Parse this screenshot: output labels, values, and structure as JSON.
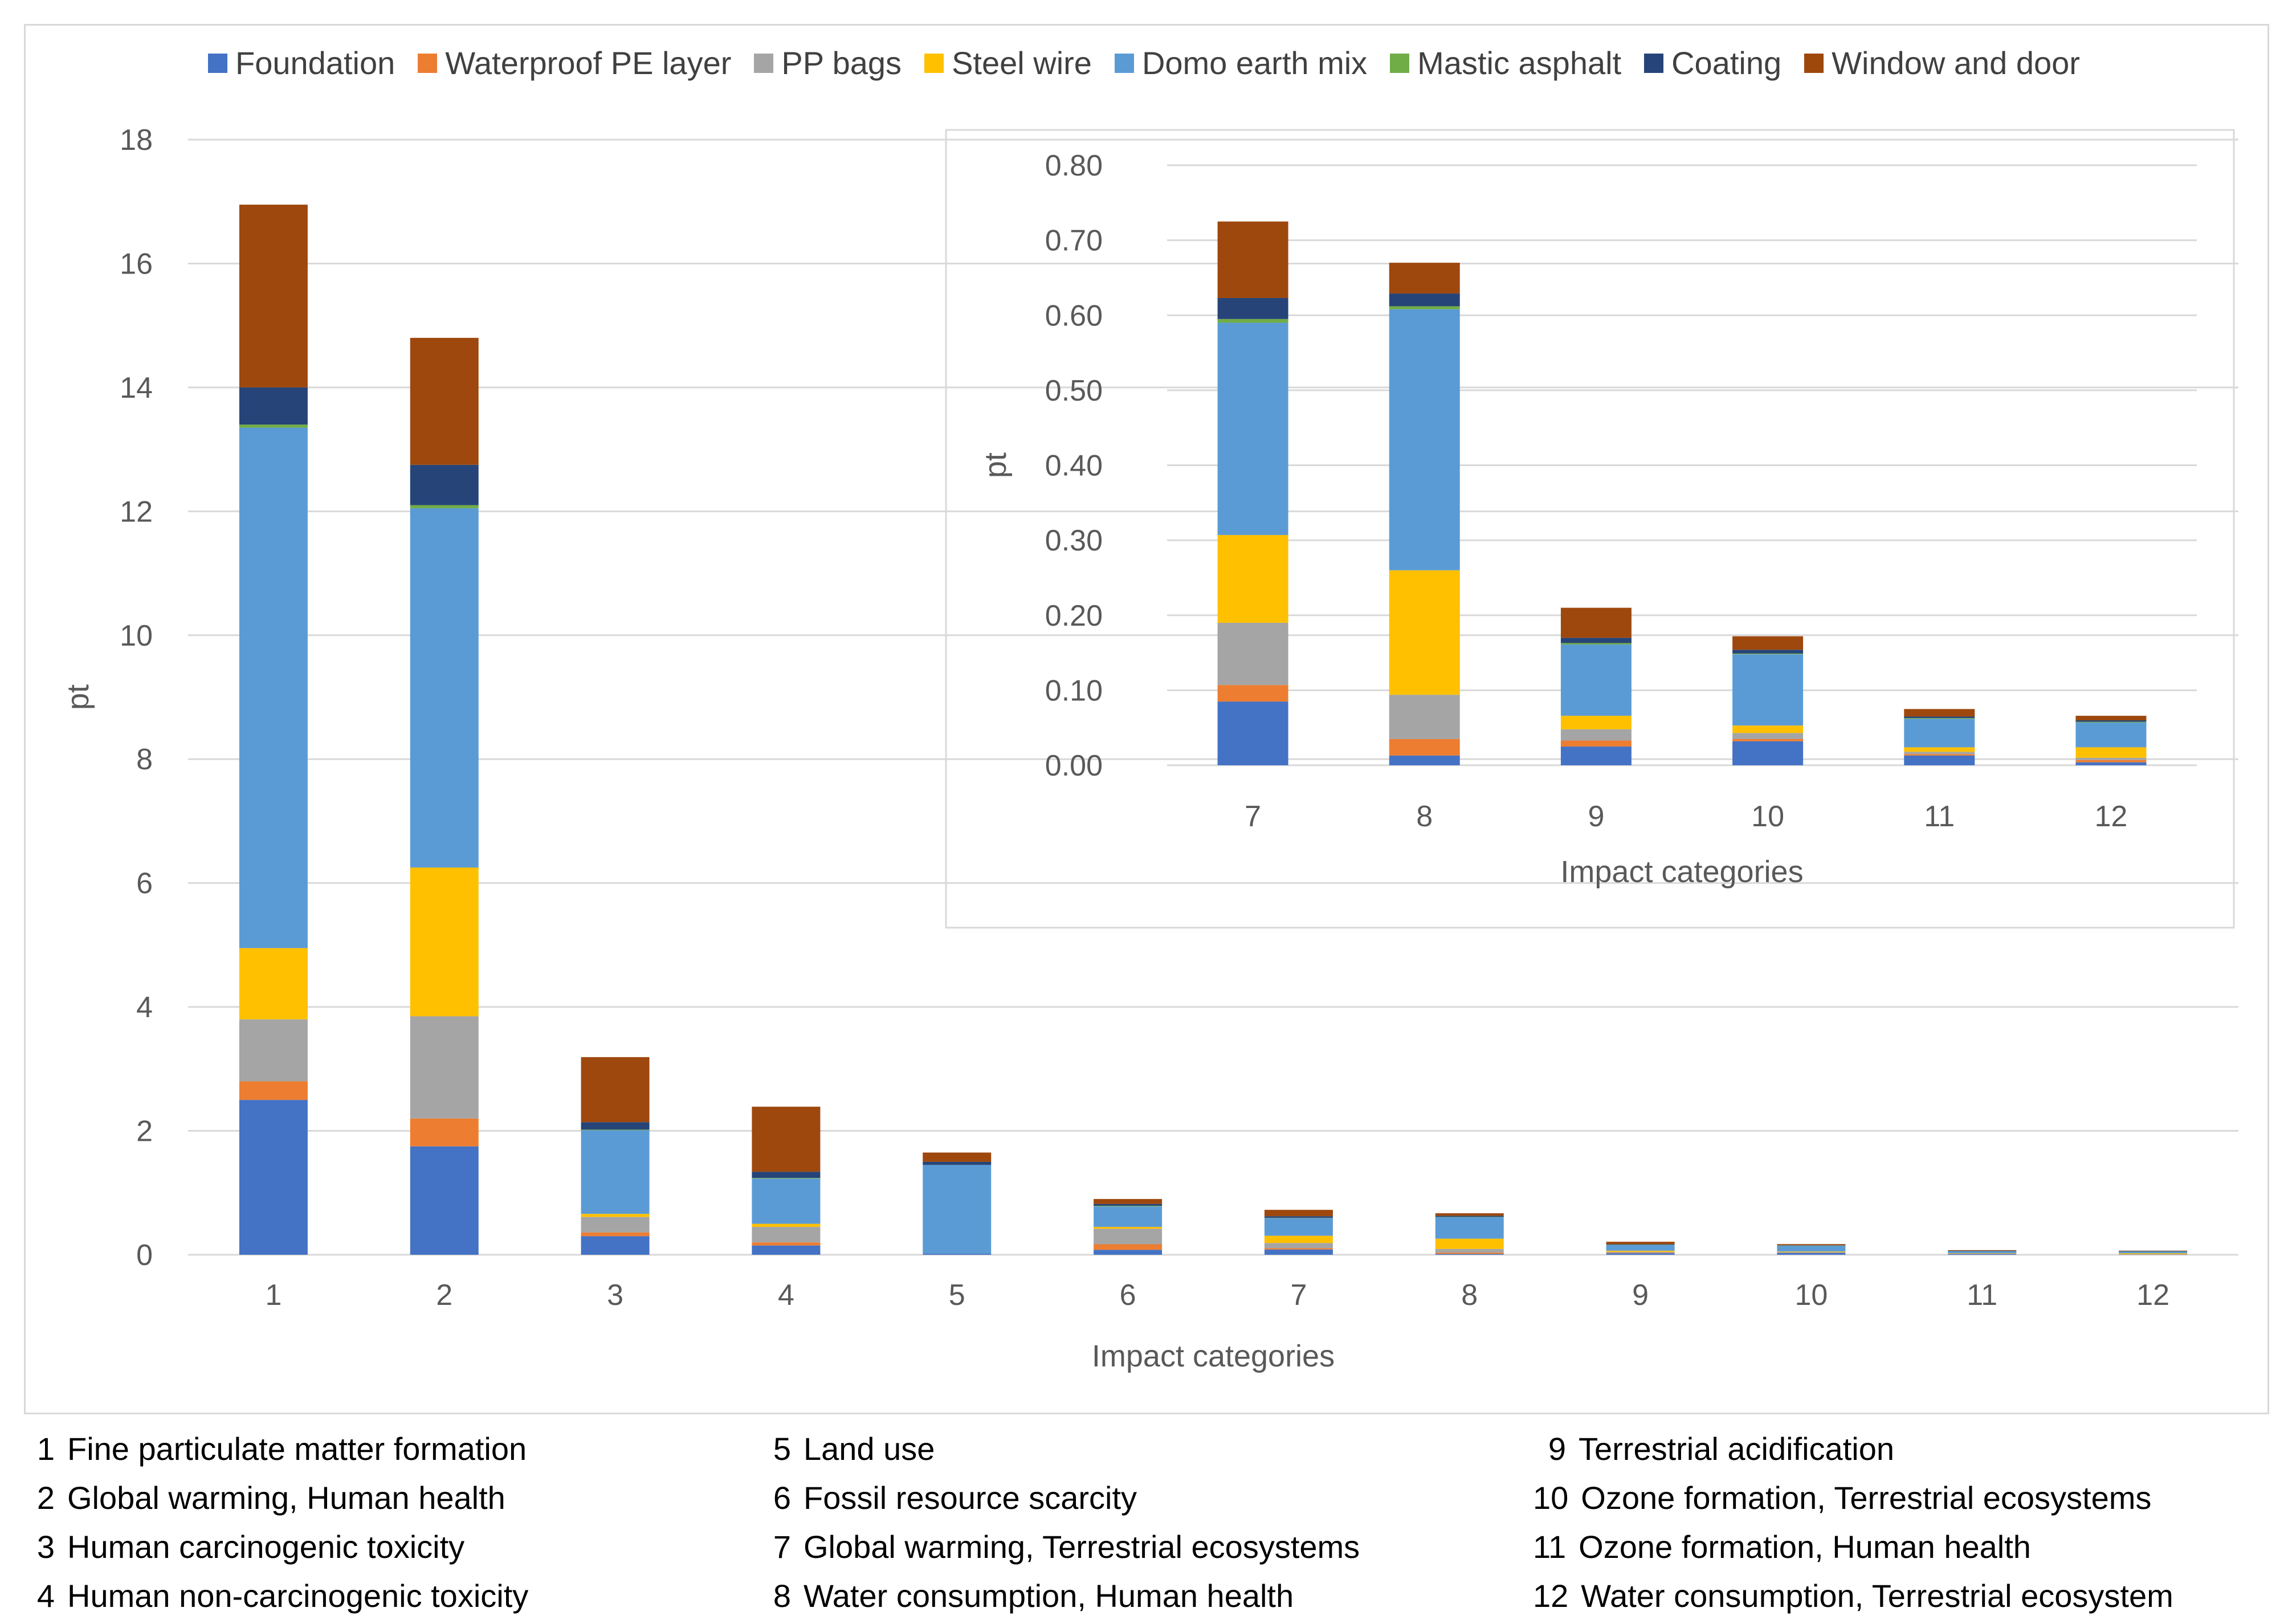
{
  "chart_data": [
    {
      "type": "bar",
      "stacked": true,
      "xlabel": "Impact categories",
      "ylabel": "pt",
      "ylim": [
        0,
        18
      ],
      "yticks": [
        "0",
        "2",
        "4",
        "6",
        "8",
        "10",
        "12",
        "14",
        "16",
        "18"
      ],
      "grid": true,
      "legend": "top",
      "categories": [
        "1",
        "2",
        "3",
        "4",
        "5",
        "6",
        "7",
        "8",
        "9",
        "10",
        "11",
        "12"
      ],
      "series": [
        {
          "name": "Foundation",
          "color": "#4472C4",
          "values": [
            2.5,
            1.75,
            0.3,
            0.15,
            0.02,
            0.08,
            0.085,
            0.013,
            0.025,
            0.032,
            0.013,
            0.004
          ]
        },
        {
          "name": "Waterproof PE layer",
          "color": "#ED7D31",
          "values": [
            0.3,
            0.45,
            0.06,
            0.05,
            0.0,
            0.09,
            0.022,
            0.022,
            0.008,
            0.003,
            0.002,
            0.003
          ]
        },
        {
          "name": "PP bags",
          "color": "#A5A5A5",
          "values": [
            1.0,
            1.65,
            0.25,
            0.25,
            0.0,
            0.25,
            0.083,
            0.059,
            0.015,
            0.008,
            0.003,
            0.003
          ]
        },
        {
          "name": "Steel wire",
          "color": "#FFC000",
          "values": [
            1.15,
            2.4,
            0.05,
            0.05,
            0.0,
            0.03,
            0.117,
            0.166,
            0.018,
            0.01,
            0.006,
            0.014
          ]
        },
        {
          "name": "Domo earth mix",
          "color": "#5B9BD5",
          "values": [
            8.4,
            5.8,
            1.35,
            0.73,
            1.43,
            0.33,
            0.283,
            0.348,
            0.095,
            0.095,
            0.038,
            0.033
          ]
        },
        {
          "name": "Mastic asphalt",
          "color": "#70AD47",
          "values": [
            0.05,
            0.05,
            0.01,
            0.01,
            0.0,
            0.01,
            0.005,
            0.004,
            0.002,
            0.001,
            0.001,
            0.001
          ]
        },
        {
          "name": "Coating",
          "color": "#264478",
          "values": [
            0.6,
            0.65,
            0.12,
            0.1,
            0.05,
            0.03,
            0.028,
            0.017,
            0.007,
            0.005,
            0.002,
            0.002
          ]
        },
        {
          "name": "Window and door",
          "color": "#9E480E",
          "values": [
            2.95,
            2.05,
            1.05,
            1.05,
            0.15,
            0.08,
            0.102,
            0.041,
            0.04,
            0.018,
            0.01,
            0.006
          ]
        }
      ]
    },
    {
      "type": "bar",
      "stacked": true,
      "inset": true,
      "xlabel": "Impact categories",
      "ylabel": "pt",
      "ylim": [
        0,
        0.8
      ],
      "yticks": [
        "0.00",
        "0.10",
        "0.20",
        "0.30",
        "0.40",
        "0.50",
        "0.60",
        "0.70",
        "0.80"
      ],
      "grid": true,
      "categories": [
        "7",
        "8",
        "9",
        "10",
        "11",
        "12"
      ],
      "series": [
        {
          "name": "Foundation",
          "color": "#4472C4",
          "values": [
            0.085,
            0.013,
            0.025,
            0.032,
            0.013,
            0.004
          ]
        },
        {
          "name": "Waterproof PE layer",
          "color": "#ED7D31",
          "values": [
            0.022,
            0.022,
            0.008,
            0.003,
            0.002,
            0.003
          ]
        },
        {
          "name": "PP bags",
          "color": "#A5A5A5",
          "values": [
            0.083,
            0.059,
            0.015,
            0.008,
            0.003,
            0.003
          ]
        },
        {
          "name": "Steel wire",
          "color": "#FFC000",
          "values": [
            0.117,
            0.166,
            0.018,
            0.01,
            0.006,
            0.014
          ]
        },
        {
          "name": "Domo earth mix",
          "color": "#5B9BD5",
          "values": [
            0.283,
            0.348,
            0.095,
            0.095,
            0.038,
            0.033
          ]
        },
        {
          "name": "Mastic asphalt",
          "color": "#70AD47",
          "values": [
            0.005,
            0.004,
            0.002,
            0.001,
            0.001,
            0.001
          ]
        },
        {
          "name": "Coating",
          "color": "#264478",
          "values": [
            0.028,
            0.017,
            0.007,
            0.005,
            0.002,
            0.002
          ]
        },
        {
          "name": "Window and door",
          "color": "#9E480E",
          "values": [
            0.102,
            0.041,
            0.04,
            0.018,
            0.01,
            0.006
          ]
        }
      ]
    }
  ],
  "category_key": [
    [
      {
        "num": "1",
        "label": "Fine particulate matter formation"
      },
      {
        "num": "2",
        "label": "Global warming, Human health"
      },
      {
        "num": "3",
        "label": "Human carcinogenic toxicity"
      },
      {
        "num": "4",
        "label": "Human non-carcinogenic toxicity"
      }
    ],
    [
      {
        "num": "5",
        "label": "Land use"
      },
      {
        "num": "6",
        "label": "Fossil resource scarcity"
      },
      {
        "num": "7",
        "label": "Global warming, Terrestrial ecosystems"
      },
      {
        "num": "8",
        "label": "Water consumption, Human health"
      }
    ],
    [
      {
        "num": "9",
        "label": "Terrestrial acidification"
      },
      {
        "num": "10",
        "label": "Ozone formation, Terrestrial ecosystems"
      },
      {
        "num": "11",
        "label": "Ozone formation, Human health"
      },
      {
        "num": "12",
        "label": "Water consumption, Terrestrial ecosystem"
      }
    ]
  ]
}
